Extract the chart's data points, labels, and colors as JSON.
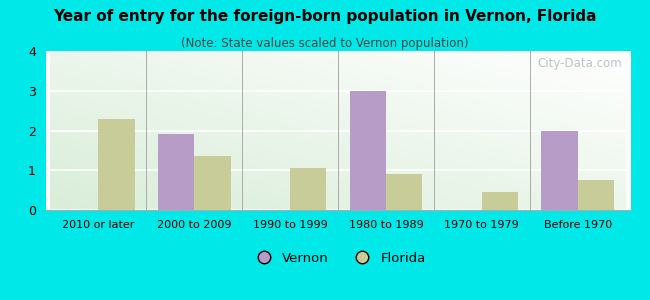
{
  "title": "Year of entry for the foreign-born population in Vernon, Florida",
  "subtitle": "(Note: State values scaled to Vernon population)",
  "categories": [
    "2010 or later",
    "2000 to 2009",
    "1990 to 1999",
    "1980 to 1989",
    "1970 to 1979",
    "Before 1970"
  ],
  "vernon_values": [
    0,
    1.9,
    0,
    3.0,
    0,
    2.0
  ],
  "florida_values": [
    2.3,
    1.35,
    1.05,
    0.9,
    0.45,
    0.75
  ],
  "vernon_color": "#b89cc8",
  "florida_color": "#c8cc99",
  "background_color": "#00e8e8",
  "ylim": [
    0,
    4
  ],
  "yticks": [
    0,
    1,
    2,
    3,
    4
  ],
  "bar_width": 0.38,
  "legend_labels": [
    "Vernon",
    "Florida"
  ],
  "watermark": "City-Data.com"
}
